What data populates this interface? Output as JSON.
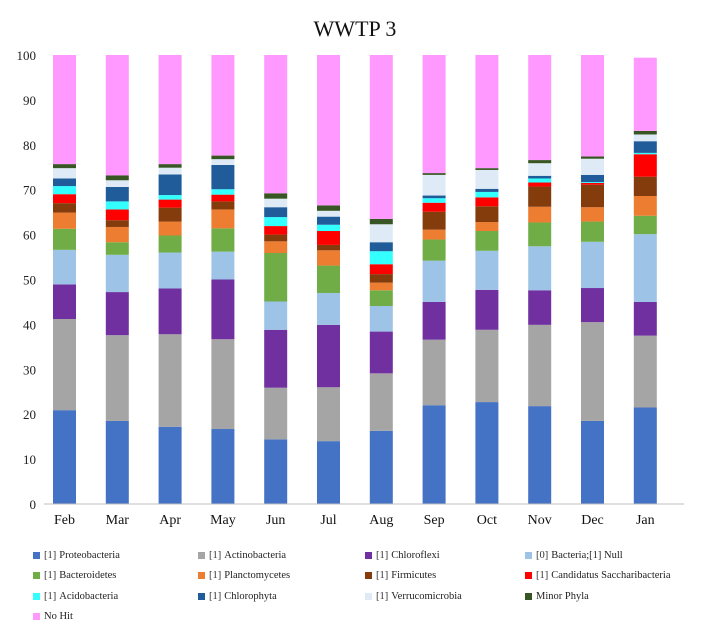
{
  "chart_data": {
    "type": "bar",
    "stacked": true,
    "title": "WWTP 3",
    "xlabel": "",
    "ylabel": "",
    "ylim": [
      0,
      100
    ],
    "yticks": [
      0,
      10,
      20,
      30,
      40,
      50,
      60,
      70,
      80,
      90,
      100
    ],
    "grid": false,
    "legend_position": "bottom",
    "categories": [
      "Feb",
      "Mar",
      "Apr",
      "May",
      "Jun",
      "Jul",
      "Aug",
      "Sep",
      "Oct",
      "Nov",
      "Dec",
      "Jan"
    ],
    "series": [
      {
        "name": "Proteobacteria",
        "tag": "[1]",
        "color": "#4472c4",
        "values": [
          20.9,
          18.5,
          17.2,
          16.7,
          14.4,
          14.0,
          16.3,
          22.0,
          22.7,
          21.8,
          18.5,
          21.5
        ]
      },
      {
        "name": "Actinobacteria",
        "tag": "[1]",
        "color": "#a5a5a5",
        "values": [
          20.3,
          19.1,
          20.6,
          20.0,
          11.5,
          12.0,
          12.8,
          14.6,
          16.1,
          18.1,
          22.0,
          16.0
        ]
      },
      {
        "name": "Chloroflexi",
        "tag": "[1]",
        "color": "#7030a0",
        "values": [
          7.7,
          9.6,
          10.2,
          13.3,
          12.9,
          13.9,
          9.3,
          8.4,
          8.9,
          7.7,
          7.6,
          7.5
        ]
      },
      {
        "name": "Bacteria;[1] Null",
        "tag": "[0]",
        "color": "#9dc3e6",
        "values": [
          7.7,
          8.3,
          8.0,
          6.2,
          6.3,
          7.1,
          5.7,
          9.2,
          8.7,
          9.8,
          10.3,
          15.1
        ]
      },
      {
        "name": "Bacteroidetes",
        "tag": "[1]",
        "color": "#70ad47",
        "values": [
          4.7,
          2.8,
          3.8,
          5.2,
          10.8,
          6.1,
          3.5,
          4.7,
          4.4,
          5.3,
          4.5,
          4.1
        ]
      },
      {
        "name": "Planctomycetes",
        "tag": "[1]",
        "color": "#ed7d31",
        "values": [
          3.6,
          3.4,
          3.1,
          4.2,
          2.6,
          3.4,
          1.7,
          2.2,
          2.0,
          3.5,
          3.2,
          4.4
        ]
      },
      {
        "name": "Firmicutes",
        "tag": "[1]",
        "color": "#843c0c",
        "values": [
          2.1,
          1.5,
          3.1,
          1.8,
          1.5,
          1.2,
          1.9,
          4.0,
          3.5,
          4.5,
          5.0,
          4.3
        ]
      },
      {
        "name": "Candidatus Saccharibacteria",
        "tag": "[1]",
        "color": "#ff0000",
        "values": [
          2.0,
          2.4,
          1.8,
          1.5,
          1.9,
          3.1,
          2.2,
          2.0,
          2.0,
          0.9,
          0.4,
          5.0
        ]
      },
      {
        "name": "Acidobacteria",
        "tag": "[1]",
        "color": "#33ffff",
        "values": [
          1.8,
          1.8,
          1.0,
          1.2,
          2.0,
          1.4,
          2.9,
          1.0,
          1.2,
          0.9,
          0.2,
          0.3
        ]
      },
      {
        "name": "Chlorophyta",
        "tag": "[1]",
        "color": "#1f5c99",
        "values": [
          1.7,
          3.2,
          4.6,
          5.4,
          2.2,
          1.8,
          2.0,
          0.6,
          0.7,
          0.6,
          1.6,
          2.6
        ]
      },
      {
        "name": "Verrucomicrobia",
        "tag": "[1]",
        "color": "#deebf7",
        "values": [
          2.3,
          1.5,
          1.5,
          1.3,
          1.9,
          1.3,
          4.0,
          4.6,
          4.2,
          2.8,
          3.6,
          1.5
        ]
      },
      {
        "name": "Minor Phyla",
        "tag": "",
        "color": "#375623",
        "values": [
          0.9,
          1.1,
          0.8,
          0.8,
          1.2,
          1.2,
          1.2,
          0.4,
          0.4,
          0.7,
          0.5,
          0.8
        ]
      },
      {
        "name": "No Hit",
        "tag": "",
        "color": "#ff99ff",
        "values": [
          24.3,
          26.8,
          24.3,
          22.4,
          30.8,
          33.5,
          36.5,
          26.3,
          25.2,
          23.4,
          22.6,
          16.3
        ]
      }
    ]
  }
}
